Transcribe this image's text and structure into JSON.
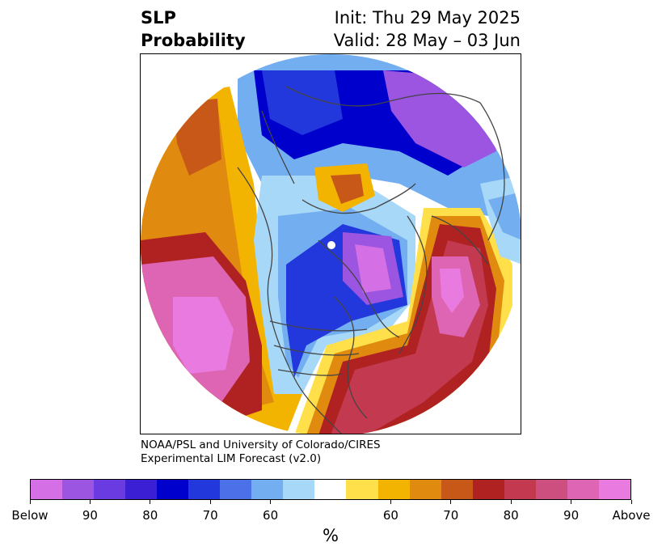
{
  "title": {
    "left_line1": "SLP",
    "left_line2": "Probability",
    "right_line1": "Init: Thu 29 May 2025",
    "right_line2": "Valid: 28 May – 03 Jun"
  },
  "credit": {
    "line1": "NOAA/PSL and University of Colorado/CIRES",
    "line2": "Experimental LIM Forecast (v2.0)"
  },
  "colorbar": {
    "unit": "%",
    "colors": [
      "#d46fe6",
      "#9b55e0",
      "#6a3be0",
      "#3a1fd4",
      "#0000cc",
      "#2238dc",
      "#4b70e8",
      "#72aef0",
      "#a8d8f8",
      "#ffffff",
      "#ffe04a",
      "#f2b400",
      "#e08a10",
      "#c85818",
      "#b02222",
      "#c33a50",
      "#cc4f7f",
      "#dd65b4",
      "#e87ae0"
    ],
    "ticks": [
      "Below",
      "90",
      "80",
      "70",
      "60",
      "60",
      "70",
      "80",
      "90",
      "Above"
    ],
    "tick_fractions": [
      0,
      0.1,
      0.2,
      0.3,
      0.4,
      0.6,
      0.7,
      0.8,
      0.9,
      1.0
    ]
  },
  "map": {
    "projection": "north-polar-stereographic",
    "colors": {
      "below_deep": "#0000cc",
      "below_mid": "#2238dc",
      "below_light": "#72aef0",
      "below_faint": "#a8d8f8",
      "below_purple": "#9b55e0",
      "below_violet": "#d46fe6",
      "above_faint": "#ffe04a",
      "above_yellow": "#f2b400",
      "above_orange": "#e08a10",
      "above_rust": "#c85818",
      "above_red": "#b02222",
      "above_rose": "#c33a50",
      "above_pink": "#dd65b4",
      "above_magenta": "#e87ae0",
      "coast": "#444444"
    }
  }
}
